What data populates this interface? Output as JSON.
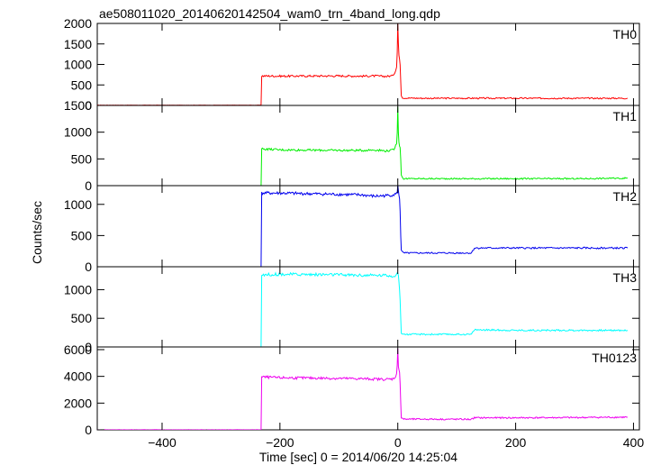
{
  "chart_data": {
    "type": "line",
    "title": "ae508011020_20140620142504_wam0_trn_4band_long.qdp",
    "xlabel": "Time [sec] 0 = 2014/06/20 14:25:04",
    "ylabel": "Counts/sec",
    "xlim": [
      -510,
      410
    ],
    "xticks": [
      -400,
      -200,
      0,
      200,
      400
    ],
    "panels": [
      {
        "name": "TH0",
        "color": "#ff0000",
        "ylim": [
          0,
          2000
        ],
        "yticks": [
          0,
          500,
          1000,
          1500,
          2000
        ],
        "series": {
          "x": [
            -510,
            -232,
            -231,
            -200,
            -100,
            -60,
            -40,
            -20,
            -10,
            -5,
            -2,
            -1,
            0,
            1,
            2,
            3,
            4,
            5,
            6,
            8,
            10,
            50,
            100,
            200,
            300,
            390
          ],
          "y": [
            5,
            5,
            720,
            715,
            720,
            715,
            720,
            710,
            720,
            800,
            950,
            1300,
            2000,
            1500,
            1200,
            1150,
            1000,
            600,
            250,
            190,
            180,
            175,
            175,
            175,
            175,
            175
          ]
        }
      },
      {
        "name": "TH1",
        "color": "#00ee00",
        "ylim": [
          0,
          1500
        ],
        "yticks": [
          0,
          500,
          1000,
          1500
        ],
        "series": {
          "x": [
            -510,
            -232,
            -231,
            -200,
            -100,
            -60,
            -40,
            -20,
            -10,
            -5,
            -2,
            -1,
            0,
            1,
            2,
            3,
            4,
            5,
            6,
            8,
            10,
            50,
            100,
            200,
            300,
            390
          ],
          "y": [
            -30,
            -30,
            690,
            670,
            660,
            660,
            670,
            650,
            660,
            700,
            800,
            1000,
            1500,
            1000,
            800,
            750,
            700,
            500,
            200,
            150,
            130,
            130,
            130,
            130,
            130,
            140
          ]
        }
      },
      {
        "name": "TH2",
        "color": "#0000ee",
        "ylim": [
          0,
          1300
        ],
        "yticks": [
          0,
          500,
          1000
        ],
        "series": {
          "x": [
            -510,
            -232,
            -231,
            -200,
            -100,
            -60,
            -40,
            -20,
            -10,
            -5,
            -2,
            -1,
            0,
            1,
            2,
            3,
            4,
            5,
            6,
            8,
            10,
            50,
            100,
            125,
            130,
            200,
            300,
            390
          ],
          "y": [
            -20,
            -20,
            1180,
            1180,
            1160,
            1150,
            1130,
            1140,
            1150,
            1160,
            1170,
            1200,
            1300,
            1200,
            1150,
            1100,
            900,
            500,
            260,
            230,
            220,
            220,
            220,
            220,
            300,
            300,
            300,
            300
          ]
        }
      },
      {
        "name": "TH3",
        "color": "#00ffff",
        "ylim": [
          0,
          1400
        ],
        "yticks": [
          0,
          500,
          1000
        ],
        "series": {
          "x": [
            -510,
            -232,
            -231,
            -200,
            -100,
            -60,
            -40,
            -20,
            -10,
            -5,
            -2,
            -1,
            0,
            1,
            2,
            3,
            4,
            5,
            6,
            8,
            10,
            50,
            100,
            125,
            130,
            200,
            300,
            390
          ],
          "y": [
            -10,
            -10,
            1260,
            1270,
            1260,
            1250,
            1250,
            1250,
            1240,
            1250,
            1260,
            1270,
            1300,
            1250,
            1150,
            1000,
            800,
            500,
            250,
            230,
            220,
            220,
            220,
            220,
            300,
            290,
            290,
            290
          ]
        }
      },
      {
        "name": "TH0123",
        "color": "#ee00ee",
        "ylim": [
          0,
          6200
        ],
        "yticks": [
          0,
          2000,
          4000,
          6000
        ],
        "series": {
          "x": [
            -510,
            -232,
            -231,
            -200,
            -100,
            -60,
            -40,
            -20,
            -10,
            -5,
            -2,
            -1,
            0,
            1,
            2,
            3,
            4,
            5,
            6,
            8,
            10,
            50,
            100,
            125,
            130,
            200,
            300,
            390
          ],
          "y": [
            0,
            0,
            3950,
            3900,
            3850,
            3820,
            3800,
            3780,
            3800,
            3900,
            4200,
            4800,
            6000,
            4800,
            4600,
            4300,
            3500,
            2000,
            900,
            850,
            800,
            800,
            790,
            790,
            900,
            900,
            920,
            950
          ]
        }
      }
    ]
  }
}
